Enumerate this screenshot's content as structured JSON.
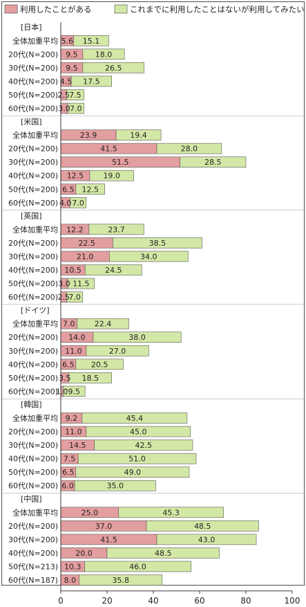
{
  "chart_data": {
    "type": "bar",
    "stacked": true,
    "orientation": "horizontal",
    "xlim": [
      0,
      100
    ],
    "xticks": [
      0,
      20,
      40,
      60,
      80,
      100
    ],
    "unit": "(%)",
    "legend": {
      "placement": "top",
      "items": [
        {
          "name": "利用したことがある",
          "color": "#e39e9f"
        },
        {
          "name": "これまでに利用したことはないが利用してみたい",
          "color": "#d3e8a6"
        }
      ]
    },
    "groups": [
      {
        "name": "[日本]",
        "rows": [
          {
            "label": "全体加重平均",
            "values": [
              5.6,
              15.1
            ]
          },
          {
            "label": "20代(N=200)",
            "values": [
              9.5,
              18.0
            ]
          },
          {
            "label": "30代(N=200)",
            "values": [
              9.5,
              26.5
            ]
          },
          {
            "label": "40代(N=200)",
            "values": [
              4.5,
              17.5
            ]
          },
          {
            "label": "50代(N=200)",
            "values": [
              2.5,
              7.5
            ]
          },
          {
            "label": "60代(N=200)",
            "values": [
              3.0,
              7.0
            ]
          }
        ]
      },
      {
        "name": "[米国]",
        "rows": [
          {
            "label": "全体加重平均",
            "values": [
              23.9,
              19.4
            ]
          },
          {
            "label": "20代(N=200)",
            "values": [
              41.5,
              28.0
            ]
          },
          {
            "label": "30代(N=200)",
            "values": [
              51.5,
              28.5
            ]
          },
          {
            "label": "40代(N=200)",
            "values": [
              12.5,
              19.0
            ]
          },
          {
            "label": "50代(N=200)",
            "values": [
              6.5,
              12.5
            ]
          },
          {
            "label": "60代(N=200)",
            "values": [
              4.0,
              7.0
            ]
          }
        ]
      },
      {
        "name": "[英国]",
        "rows": [
          {
            "label": "全体加重平均",
            "values": [
              12.2,
              23.7
            ]
          },
          {
            "label": "20代(N=200)",
            "values": [
              22.5,
              38.5
            ]
          },
          {
            "label": "30代(N=200)",
            "values": [
              21.0,
              34.0
            ]
          },
          {
            "label": "40代(N=200)",
            "values": [
              10.5,
              24.5
            ]
          },
          {
            "label": "50代(N=200)",
            "values": [
              3.0,
              11.5
            ]
          },
          {
            "label": "60代(N=200)",
            "values": [
              2.5,
              7.0
            ]
          }
        ]
      },
      {
        "name": "[ドイツ]",
        "rows": [
          {
            "label": "全体加重平均",
            "values": [
              7.0,
              22.4
            ]
          },
          {
            "label": "20代(N=200)",
            "values": [
              14.0,
              38.0
            ]
          },
          {
            "label": "30代(N=200)",
            "values": [
              11.0,
              27.0
            ]
          },
          {
            "label": "40代(N=200)",
            "values": [
              6.5,
              20.5
            ]
          },
          {
            "label": "50代(N=200)",
            "values": [
              3.5,
              18.5
            ]
          },
          {
            "label": "60代(N=200)",
            "values": [
              1.0,
              9.5
            ]
          }
        ]
      },
      {
        "name": "[韓国]",
        "rows": [
          {
            "label": "全体加重平均",
            "values": [
              9.2,
              45.4
            ]
          },
          {
            "label": "20代(N=200)",
            "values": [
              11.0,
              45.0
            ]
          },
          {
            "label": "30代(N=200)",
            "values": [
              14.5,
              42.5
            ]
          },
          {
            "label": "40代(N=200)",
            "values": [
              7.5,
              51.0
            ]
          },
          {
            "label": "50代(N=200)",
            "values": [
              6.5,
              49.0
            ]
          },
          {
            "label": "60代(N=200)",
            "values": [
              6.0,
              35.0
            ]
          }
        ]
      },
      {
        "name": "[中国]",
        "rows": [
          {
            "label": "全体加重平均",
            "values": [
              25.0,
              45.3
            ]
          },
          {
            "label": "20代(N=200)",
            "values": [
              37.0,
              48.5
            ]
          },
          {
            "label": "30代(N=200)",
            "values": [
              41.5,
              43.0
            ]
          },
          {
            "label": "40代(N=200)",
            "values": [
              20.0,
              48.5
            ]
          },
          {
            "label": "50代(N=213)",
            "values": [
              10.3,
              46.0
            ]
          },
          {
            "label": "60代(N=187)",
            "values": [
              8.0,
              35.8
            ]
          }
        ]
      }
    ]
  }
}
